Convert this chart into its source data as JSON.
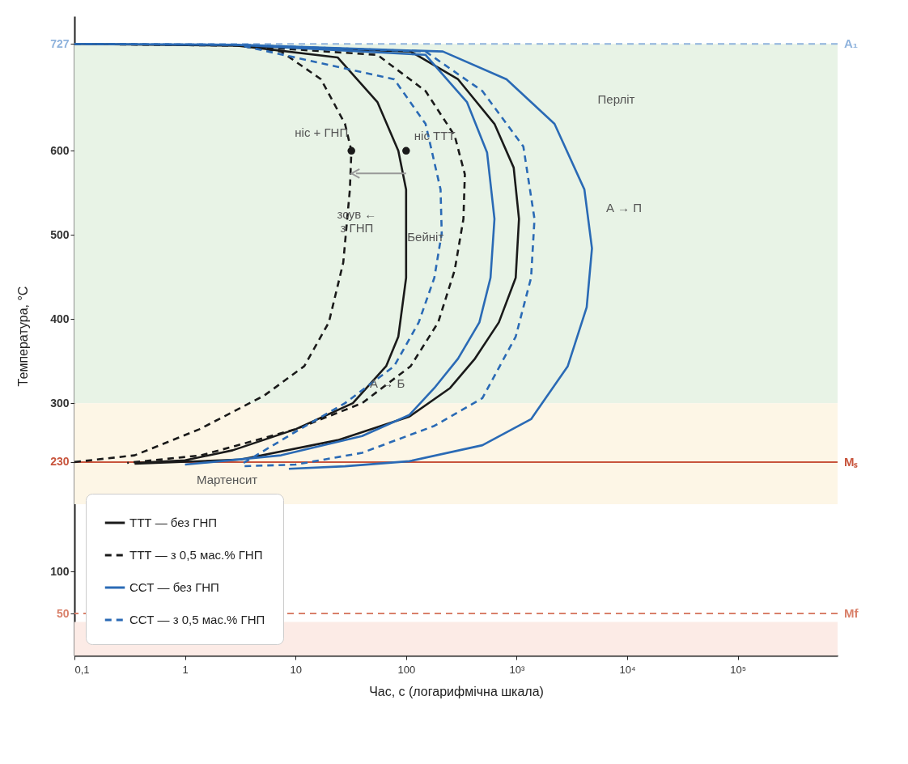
{
  "chart_data": {
    "type": "line",
    "xlabel": "Час, с (логарифмічна шкала)",
    "ylabel": "Температура, °C",
    "log": "x",
    "xlim": [
      0.1,
      800000
    ],
    "ylim": [
      0,
      760
    ],
    "xticks": [
      {
        "value": 0.1,
        "label": "0,1"
      },
      1,
      10,
      100,
      {
        "value": 1000,
        "label": "10³"
      },
      {
        "value": 10000,
        "label": "10⁴"
      },
      {
        "value": 100000,
        "label": "10⁵"
      }
    ],
    "yticks": [
      50,
      100,
      230,
      300,
      400,
      500,
      600,
      727
    ],
    "legend": "bottom left",
    "series": [
      {
        "name": "ТТТ — без ГНП",
        "color": "#1a1a1a",
        "line_style": "solid",
        "x": [
          0.1,
          3,
          24,
          55,
          85,
          100,
          100,
          100,
          85,
          66,
          33,
          10,
          2.7,
          1,
          0.35,
          null,
          0.1,
          3,
          110,
          295,
          630,
          940,
          1050,
          980,
          690,
          420,
          250,
          107,
          24,
          3.2,
          0.35
        ],
        "values": [
          727,
          725,
          711,
          658,
          600,
          554,
          500,
          449,
          379,
          344,
          300,
          269,
          244,
          232,
          229,
          null,
          727,
          725,
          718,
          685,
          632,
          580,
          519,
          449,
          396,
          353,
          318,
          284,
          256,
          233,
          228
        ]
      },
      {
        "name": "ТТТ — з 0,5 мас.% ГНП",
        "color": "#1a1a1a",
        "line_style": "dashed",
        "x": [
          0.1,
          3,
          7.4,
          17,
          28,
          32,
          31,
          27,
          20,
          12,
          5.2,
          1.35,
          0.35,
          0.1,
          null,
          0.1,
          3,
          55,
          150,
          275,
          340,
          330,
          275,
          195,
          110,
          40,
          10,
          1.4,
          0.3
        ],
        "values": [
          727,
          725,
          718,
          685,
          632,
          600,
          554,
          467,
          396,
          344,
          309,
          269,
          238,
          230,
          null,
          727,
          725,
          714,
          671,
          618,
          572,
          519,
          458,
          396,
          344,
          300,
          269,
          238,
          229
        ]
      },
      {
        "name": "ССТ — без ГНП",
        "color": "#2a6ab5",
        "line_style": "solid",
        "x": [
          0.1,
          3,
          150,
          355,
          540,
          630,
          580,
          460,
          295,
          180,
          107,
          40,
          7.4,
          1,
          null,
          0.1,
          3,
          215,
          810,
          2200,
          4100,
          4800,
          4300,
          2900,
          1350,
          490,
          107,
          28,
          8.7
        ],
        "values": [
          727,
          726,
          714,
          658,
          598,
          519,
          449,
          396,
          353,
          318,
          286,
          261,
          238,
          227,
          null,
          727,
          726,
          718,
          685,
          632,
          554,
          484,
          414,
          344,
          281,
          250,
          231,
          225,
          222
        ]
      },
      {
        "name": "ССТ — з 0,5 мас.% ГНП",
        "color": "#2a6ab5",
        "line_style": "dashed",
        "x": [
          0.1,
          3,
          78,
          150,
          205,
          210,
          180,
          130,
          78,
          28,
          10,
          3.2,
          null,
          0.1,
          3,
          150,
          490,
          1150,
          1450,
          1350,
          980,
          490,
          180,
          40,
          10,
          3.2
        ],
        "values": [
          727,
          726,
          685,
          632,
          554,
          502,
          449,
          396,
          344,
          300,
          266,
          227,
          null,
          727,
          726,
          718,
          671,
          605,
          519,
          449,
          379,
          306,
          273,
          241,
          227,
          225
        ]
      },
      {
        "type": "scatter",
        "marker": "circle",
        "color": "#1a1a1a",
        "x": [
          100
        ],
        "values": [
          600
        ]
      },
      {
        "type": "scatter",
        "marker": "circle",
        "color": "#1a1a1a",
        "x": [
          32
        ],
        "values": [
          600
        ]
      }
    ],
    "ref_lines": [
      {
        "axis": "y",
        "value": 727,
        "label": "A₁",
        "color": "#8fb3dd",
        "line_style": "dashed"
      },
      {
        "axis": "y",
        "value": 230,
        "label": "Mₛ",
        "color": "#c8553d",
        "line_style": "solid"
      },
      {
        "axis": "y",
        "value": 50,
        "label": "Mf",
        "color": "#d9806a",
        "line_style": "dashed"
      }
    ],
    "bands": [
      {
        "axis": "y",
        "from": 300,
        "to": 727,
        "color": "#e8f3e6"
      },
      {
        "axis": "y",
        "from": 180,
        "to": 300,
        "color": "#fdf6e6"
      },
      {
        "axis": "y",
        "from": 0,
        "to": 40,
        "color": "#fcebe6"
      }
    ],
    "annotations": [
      "Перліт",
      "Бейніт",
      "Мартенсит",
      {
        "text": "ніс + ГНП",
        "x": 32,
        "y": 600
      },
      {
        "text": "ніс ТТТ",
        "x": 100,
        "y": 600
      },
      "зсув ←\nз ГНП",
      "А → П",
      "А → Б"
    ]
  }
}
